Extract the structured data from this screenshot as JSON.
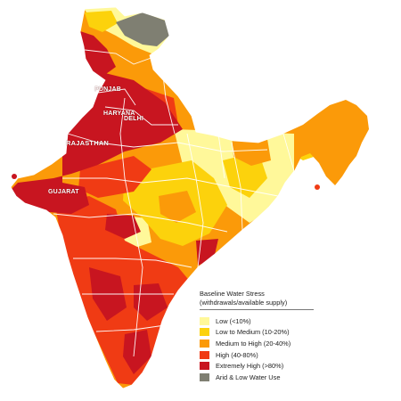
{
  "colors": {
    "low": "#fff89a",
    "low_medium": "#fcd20c",
    "medium_high": "#fb9a09",
    "high": "#f03b14",
    "extremely_high": "#c81520",
    "arid": "#7f7f72",
    "borders": "#ffffff"
  },
  "state_labels": [
    {
      "id": "punjab",
      "text": "PUNJAB"
    },
    {
      "id": "haryana",
      "text": "HARYANA"
    },
    {
      "id": "delhi",
      "text": "DELHI"
    },
    {
      "id": "rajasthan",
      "text": "RAJASTHAN"
    },
    {
      "id": "gujarat",
      "text": "GUJARAT"
    }
  ],
  "legend": {
    "title": "Baseline Water Stress",
    "subtitle": "(withdrawals/available supply)",
    "items": [
      {
        "label": "Low (<10%)",
        "color": "#fff89a"
      },
      {
        "label": "Low to Medium (10-20%)",
        "color": "#fcd20c"
      },
      {
        "label": "Medium to High (20-40%)",
        "color": "#fb9a09"
      },
      {
        "label": "High (40-80%)",
        "color": "#f03b14"
      },
      {
        "label": "Extremely High (>80%)",
        "color": "#c81520"
      },
      {
        "label": "Arid & Low Water Use",
        "color": "#7f7f72"
      }
    ]
  }
}
